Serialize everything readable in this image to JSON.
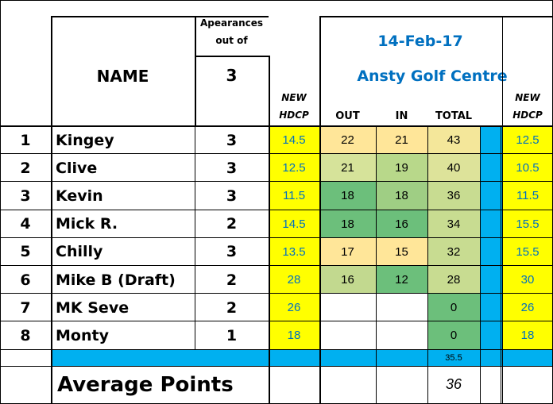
{
  "header": {
    "appearances_label_line1": "Apearances",
    "appearances_label_line2": "out of",
    "appearances_total": "3",
    "name_label": "NAME",
    "date": "14-Feb-17",
    "venue": "Ansty Golf Centre",
    "new_hdcp_left_line1": "NEW",
    "new_hdcp_left_line2": "HDCP",
    "out_label": "OUT",
    "in_label": "IN",
    "total_label": "TOTAL",
    "new_hdcp_right_line1": "NEW",
    "new_hdcp_right_line2": "HDCP"
  },
  "rows": [
    {
      "rank": "1",
      "name": "Kingey",
      "apps": "3",
      "hdcp": "14.5",
      "out": "22",
      "in": "21",
      "total": "43",
      "new_hdcp": "12.5",
      "out_color": "#ffe699",
      "in_color": "#ffe699",
      "total_color": "#f4e79a"
    },
    {
      "rank": "2",
      "name": "Clive",
      "apps": "3",
      "hdcp": "12.5",
      "out": "21",
      "in": "19",
      "total": "40",
      "new_hdcp": "10.5",
      "out_color": "#d6e39a",
      "in_color": "#b8d88a",
      "total_color": "#dde39a"
    },
    {
      "rank": "3",
      "name": "Kevin",
      "apps": "3",
      "hdcp": "11.5",
      "out": "18",
      "in": "18",
      "total": "36",
      "new_hdcp": "11.5",
      "out_color": "#6cbf7b",
      "in_color": "#9fce84",
      "total_color": "#c8dc91"
    },
    {
      "rank": "4",
      "name": "Mick R.",
      "apps": "2",
      "hdcp": "14.5",
      "out": "18",
      "in": "16",
      "total": "34",
      "new_hdcp": "15.5",
      "out_color": "#6cbf7b",
      "in_color": "#6cbf7b",
      "total_color": "#c8dc91"
    },
    {
      "rank": "5",
      "name": "Chilly",
      "apps": "3",
      "hdcp": "13.5",
      "out": "17",
      "in": "15",
      "total": "32",
      "new_hdcp": "15.5",
      "out_color": "#ffe699",
      "in_color": "#ffe699",
      "total_color": "#c8dc91"
    },
    {
      "rank": "6",
      "name": "Mike B (Draft)",
      "apps": "2",
      "hdcp": "28",
      "out": "16",
      "in": "12",
      "total": "28",
      "new_hdcp": "30",
      "out_color": "#c2d98f",
      "in_color": "#6cbf7b",
      "total_color": "#c8dc91"
    },
    {
      "rank": "7",
      "name": "MK Seve",
      "apps": "2",
      "hdcp": "26",
      "out": "",
      "in": "",
      "total": "0",
      "new_hdcp": "26",
      "out_color": "#ffffff",
      "in_color": "#ffffff",
      "total_color": "#6cbf7b"
    },
    {
      "rank": "8",
      "name": "Monty",
      "apps": "1",
      "hdcp": "18",
      "out": "",
      "in": "",
      "total": "0",
      "new_hdcp": "18",
      "out_color": "#ffffff",
      "in_color": "#ffffff",
      "total_color": "#6cbf7b"
    }
  ],
  "summary": {
    "total_small": "35.5",
    "average_label": "Average Points",
    "average_value": "36"
  },
  "colors": {
    "yellow": "#ffff00",
    "cyan": "#00b0f0",
    "blue_text": "#0070c0"
  }
}
